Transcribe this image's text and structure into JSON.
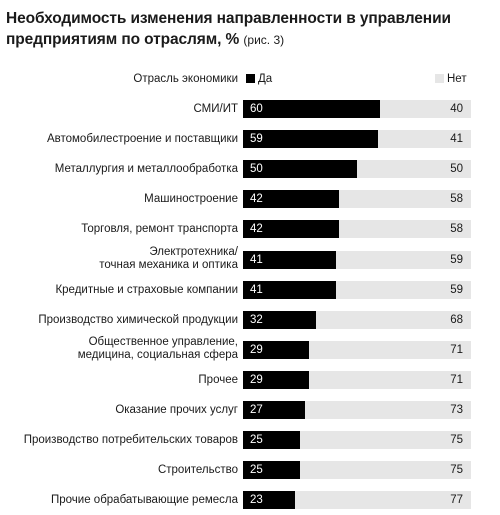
{
  "title": "Необходимость изменения направленности в управлении предприятиям по отраслям, %",
  "figure_ref": "(рис. 3)",
  "chart_data": {
    "type": "bar",
    "orientation": "horizontal-stacked-100",
    "title": "Необходимость изменения направленности в управлении предприятиям по отраслям, %",
    "category_header": "Отрасль экономики",
    "series": [
      {
        "name": "Да",
        "color": "#000000",
        "values": [
          60,
          59,
          50,
          42,
          42,
          41,
          41,
          32,
          29,
          29,
          27,
          25,
          25,
          23
        ]
      },
      {
        "name": "Нет",
        "color": "#e6e6e6",
        "values": [
          40,
          41,
          50,
          58,
          58,
          59,
          59,
          68,
          71,
          71,
          73,
          75,
          75,
          77
        ]
      }
    ],
    "categories": [
      "СМИ/ИТ",
      "Автомобилестроение и поставщики",
      "Металлургия и металлообработка",
      "Машиностроение",
      "Торговля, ремонт транспорта",
      "Электротехника/\nточная механика и оптика",
      "Кредитные и страховые компании",
      "Производство химической продукции",
      "Общественное управление,\nмедицина, социальная сфера",
      "Прочее",
      "Оказание прочих услуг",
      "Производство потребительских товаров",
      "Строительство",
      "Прочие обрабатывающие ремесла"
    ],
    "xlim": [
      0,
      100
    ],
    "legend": "top"
  }
}
